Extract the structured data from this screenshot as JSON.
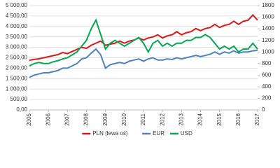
{
  "chart_data": {
    "type": "line",
    "categories": [
      "2005",
      null,
      null,
      null,
      "2006",
      null,
      null,
      null,
      "2007",
      null,
      null,
      null,
      "2008",
      null,
      null,
      null,
      "2009",
      null,
      null,
      null,
      "2010",
      null,
      null,
      null,
      "2011",
      null,
      null,
      null,
      "2012",
      null,
      null,
      null,
      "2013",
      null,
      null,
      null,
      "2014",
      null,
      null,
      null,
      "2015",
      null,
      null,
      null,
      "2016",
      null,
      null,
      null,
      "2017"
    ],
    "series": [
      {
        "name": "PLN (lewa oś)",
        "color": "#d7191c",
        "values": [
          2380,
          2420,
          2450,
          2500,
          2550,
          2600,
          2650,
          2750,
          2700,
          2800,
          2900,
          3000,
          2950,
          3100,
          3200,
          3300,
          3100,
          3150,
          3200,
          3300,
          3200,
          3300,
          3350,
          3450,
          3350,
          3450,
          3500,
          3600,
          3450,
          3550,
          3600,
          3750,
          3600,
          3700,
          3750,
          3900,
          3800,
          3900,
          3950,
          4100,
          3950,
          4050,
          4100,
          4250,
          4100,
          4250,
          4300,
          4550,
          4300
        ]
      },
      {
        "name": "EUR",
        "color": "#4f81bd",
        "axis": "y2",
        "values": [
          560,
          600,
          620,
          640,
          640,
          660,
          680,
          720,
          720,
          760,
          800,
          880,
          900,
          980,
          1050,
          950,
          720,
          780,
          800,
          820,
          800,
          840,
          860,
          880,
          840,
          880,
          900,
          860,
          860,
          880,
          870,
          900,
          880,
          900,
          920,
          940,
          920,
          940,
          960,
          1000,
          960,
          1000,
          980,
          1020,
          980,
          1000,
          1000,
          1020,
          1030
        ]
      },
      {
        "name": "USD",
        "color": "#00a651",
        "axis": "y2",
        "values": [
          760,
          800,
          820,
          800,
          800,
          830,
          850,
          880,
          900,
          950,
          1000,
          1100,
          1200,
          1400,
          1550,
          1300,
          1050,
          1150,
          1200,
          1150,
          1100,
          1150,
          1200,
          1250,
          1150,
          1000,
          1150,
          1200,
          1100,
          1150,
          1100,
          1150,
          1150,
          1200,
          1200,
          1250,
          1250,
          1300,
          1250,
          1150,
          1050,
          1100,
          1050,
          1100,
          1000,
          1050,
          1050,
          1150,
          1050
        ]
      }
    ],
    "ylim": [
      0,
      5000
    ],
    "yticks": [
      {
        "value": 0,
        "label": "0,00"
      },
      {
        "value": 500,
        "label": "500,00"
      },
      {
        "value": 1000,
        "label": "1 000,00"
      },
      {
        "value": 1500,
        "label": "1 500,00"
      },
      {
        "value": 2000,
        "label": "2 000,00"
      },
      {
        "value": 2500,
        "label": "2 500,00"
      },
      {
        "value": 3000,
        "label": "3 000,00"
      },
      {
        "value": 3500,
        "label": "3 500,00"
      },
      {
        "value": 4000,
        "label": "4 000,00"
      },
      {
        "value": 4500,
        "label": "4 500,00"
      },
      {
        "value": 5000,
        "label": "5 000,00"
      }
    ],
    "y2lim": [
      0,
      1800
    ],
    "y2ticks": [
      0,
      200,
      400,
      600,
      800,
      1000,
      1200,
      1400,
      1600,
      1800
    ],
    "grid": true
  }
}
